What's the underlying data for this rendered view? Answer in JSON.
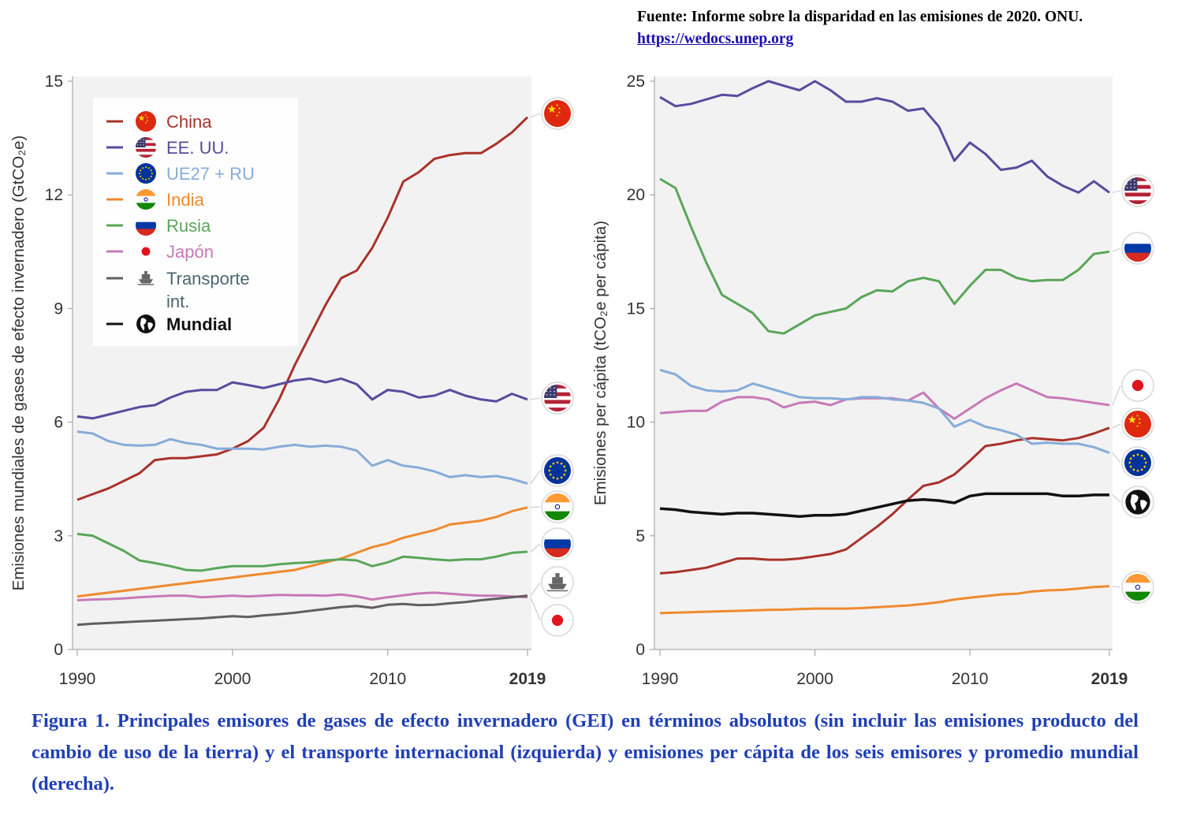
{
  "source": {
    "text": "Fuente: Informe sobre la disparidad en las emisiones de 2020. ONU.",
    "url": "https://wedocs.unep.org"
  },
  "caption": "Figura 1. Principales emisores de gases de efecto invernadero (GEI) en términos absolutos (sin incluir las emisiones producto del cambio de uso de la tierra)  y el transporte internacional (izquierda) y emisiones per cápita de los seis emisores y promedio mundial (derecha).",
  "colors": {
    "China": "#a9322a",
    "EE. UU.": "#5a4b9e",
    "UE27 + RU": "#86acd9",
    "India": "#ef8a2e",
    "Rusia": "#5aa65a",
    "Japón": "#c77ab8",
    "Transporte int.": "#5f5f5f",
    "Mundial": "#111111",
    "plot_bg": "#f2f2f2"
  },
  "legend": [
    {
      "name": "China",
      "label": "China",
      "label2": "",
      "icon": "china-flag-icon"
    },
    {
      "name": "EE. UU.",
      "label": "EE. UU.",
      "label2": "",
      "icon": "usa-flag-icon"
    },
    {
      "name": "UE27 + RU",
      "label": "UE27 + RU",
      "label2": "",
      "icon": "eu-flag-icon"
    },
    {
      "name": "India",
      "label": "India",
      "label2": "",
      "icon": "india-flag-icon"
    },
    {
      "name": "Rusia",
      "label": "Rusia",
      "label2": "",
      "icon": "russia-flag-icon"
    },
    {
      "name": "Japón",
      "label": "Japón",
      "label2": "",
      "icon": "japan-flag-icon"
    },
    {
      "name": "Transporte int.",
      "label": "Transporte",
      "label2": "int.",
      "icon": "ship-icon"
    },
    {
      "name": "Mundial",
      "label": "Mundial",
      "label2": "",
      "icon": "globe-icon"
    }
  ],
  "chart_data": [
    {
      "type": "line",
      "title": "",
      "xlabel": "",
      "ylabel": "Emisiones mundiales de gases de efecto invernadero (GtCO₂e)",
      "xlim": [
        1990,
        2019
      ],
      "ylim": [
        0,
        15
      ],
      "xticks": [
        "1990",
        "2000",
        "2010",
        "2019"
      ],
      "yticks": [
        "0",
        "3",
        "6",
        "9",
        "12",
        "15"
      ],
      "grid": false,
      "legend_position": "top-left",
      "x": [
        1990,
        1991,
        1992,
        1993,
        1994,
        1995,
        1996,
        1997,
        1998,
        1999,
        2000,
        2001,
        2002,
        2003,
        2004,
        2005,
        2006,
        2007,
        2008,
        2009,
        2010,
        2011,
        2012,
        2013,
        2014,
        2015,
        2016,
        2017,
        2018,
        2019
      ],
      "series": [
        {
          "name": "China",
          "end_icon": "china-flag-icon",
          "values": [
            3.95,
            4.1,
            4.25,
            4.45,
            4.65,
            5.0,
            5.05,
            5.05,
            5.1,
            5.15,
            5.3,
            5.5,
            5.85,
            6.6,
            7.5,
            8.3,
            9.1,
            9.8,
            10.0,
            10.6,
            11.4,
            12.35,
            12.6,
            12.95,
            13.05,
            13.1,
            13.1,
            13.35,
            13.65,
            14.05
          ]
        },
        {
          "name": "EE. UU.",
          "end_icon": "usa-flag-icon",
          "values": [
            6.15,
            6.1,
            6.2,
            6.3,
            6.4,
            6.45,
            6.65,
            6.8,
            6.85,
            6.85,
            7.05,
            6.98,
            6.9,
            7.0,
            7.1,
            7.15,
            7.05,
            7.15,
            7.0,
            6.6,
            6.85,
            6.8,
            6.65,
            6.7,
            6.85,
            6.7,
            6.6,
            6.55,
            6.75,
            6.6
          ]
        },
        {
          "name": "UE27 + RU",
          "end_icon": "eu-flag-icon",
          "values": [
            5.75,
            5.7,
            5.5,
            5.4,
            5.38,
            5.4,
            5.55,
            5.45,
            5.4,
            5.3,
            5.3,
            5.3,
            5.28,
            5.35,
            5.4,
            5.35,
            5.38,
            5.35,
            5.25,
            4.85,
            5.0,
            4.85,
            4.8,
            4.7,
            4.55,
            4.6,
            4.55,
            4.58,
            4.5,
            4.38
          ]
        },
        {
          "name": "India",
          "end_icon": "india-flag-icon",
          "values": [
            1.4,
            1.45,
            1.5,
            1.55,
            1.6,
            1.65,
            1.7,
            1.75,
            1.8,
            1.85,
            1.9,
            1.95,
            2.0,
            2.05,
            2.1,
            2.2,
            2.3,
            2.4,
            2.55,
            2.7,
            2.8,
            2.95,
            3.05,
            3.15,
            3.3,
            3.35,
            3.4,
            3.5,
            3.65,
            3.75
          ]
        },
        {
          "name": "Rusia",
          "end_icon": "russia-flag-icon",
          "values": [
            3.05,
            3.0,
            2.8,
            2.6,
            2.35,
            2.28,
            2.2,
            2.1,
            2.08,
            2.15,
            2.2,
            2.2,
            2.2,
            2.25,
            2.28,
            2.3,
            2.35,
            2.38,
            2.35,
            2.2,
            2.3,
            2.45,
            2.42,
            2.38,
            2.35,
            2.38,
            2.38,
            2.45,
            2.55,
            2.58
          ]
        },
        {
          "name": "Japón",
          "end_icon": "japan-flag-icon",
          "values": [
            1.3,
            1.32,
            1.33,
            1.35,
            1.38,
            1.4,
            1.42,
            1.42,
            1.38,
            1.4,
            1.42,
            1.4,
            1.42,
            1.44,
            1.43,
            1.43,
            1.42,
            1.45,
            1.4,
            1.32,
            1.38,
            1.43,
            1.48,
            1.5,
            1.47,
            1.44,
            1.42,
            1.42,
            1.4,
            1.38
          ]
        },
        {
          "name": "Transporte int.",
          "end_icon": "ship-icon",
          "values": [
            0.65,
            0.68,
            0.7,
            0.72,
            0.74,
            0.76,
            0.78,
            0.8,
            0.82,
            0.85,
            0.88,
            0.86,
            0.9,
            0.93,
            0.97,
            1.02,
            1.07,
            1.12,
            1.15,
            1.1,
            1.18,
            1.2,
            1.17,
            1.18,
            1.22,
            1.25,
            1.3,
            1.34,
            1.38,
            1.42
          ]
        }
      ]
    },
    {
      "type": "line",
      "title": "",
      "xlabel": "",
      "ylabel": "Emisiones per cápita (tCO₂e per cápita)",
      "xlim": [
        1990,
        2019
      ],
      "ylim": [
        0,
        25
      ],
      "xticks": [
        "1990",
        "2000",
        "2010",
        "2019"
      ],
      "yticks": [
        "0",
        "5",
        "10",
        "15",
        "20",
        "25"
      ],
      "grid": false,
      "x": [
        1990,
        1991,
        1992,
        1993,
        1994,
        1995,
        1996,
        1997,
        1998,
        1999,
        2000,
        2001,
        2002,
        2003,
        2004,
        2005,
        2006,
        2007,
        2008,
        2009,
        2010,
        2011,
        2012,
        2013,
        2014,
        2015,
        2016,
        2017,
        2018,
        2019
      ],
      "series": [
        {
          "name": "EE. UU.",
          "end_icon": "usa-flag-icon",
          "values": [
            24.3,
            23.9,
            24.0,
            24.2,
            24.4,
            24.35,
            24.7,
            25.0,
            24.8,
            24.6,
            25.0,
            24.6,
            24.1,
            24.1,
            24.25,
            24.1,
            23.7,
            23.8,
            23.0,
            21.5,
            22.3,
            21.8,
            21.1,
            21.2,
            21.5,
            20.8,
            20.4,
            20.1,
            20.6,
            20.1
          ]
        },
        {
          "name": "Rusia",
          "end_icon": "russia-flag-icon",
          "values": [
            20.7,
            20.3,
            18.6,
            17.0,
            15.6,
            15.2,
            14.8,
            14.0,
            13.9,
            14.3,
            14.7,
            14.85,
            15.0,
            15.5,
            15.8,
            15.75,
            16.2,
            16.35,
            16.2,
            15.2,
            16.0,
            16.7,
            16.7,
            16.35,
            16.2,
            16.25,
            16.25,
            16.7,
            17.4,
            17.5
          ]
        },
        {
          "name": "Japón",
          "end_icon": "japan-flag-icon",
          "values": [
            10.4,
            10.45,
            10.5,
            10.5,
            10.9,
            11.1,
            11.1,
            11.0,
            10.65,
            10.85,
            10.9,
            10.75,
            11.0,
            11.05,
            11.05,
            11.05,
            10.95,
            11.3,
            10.6,
            10.15,
            10.6,
            11.05,
            11.4,
            11.7,
            11.4,
            11.1,
            11.05,
            10.95,
            10.85,
            10.75
          ]
        },
        {
          "name": "China",
          "end_icon": "china-flag-icon",
          "values": [
            3.35,
            3.4,
            3.5,
            3.6,
            3.8,
            4.0,
            4.0,
            3.95,
            3.95,
            4.0,
            4.1,
            4.2,
            4.4,
            4.9,
            5.4,
            5.95,
            6.6,
            7.2,
            7.35,
            7.7,
            8.3,
            8.95,
            9.05,
            9.2,
            9.3,
            9.25,
            9.2,
            9.3,
            9.5,
            9.75
          ]
        },
        {
          "name": "UE27 + RU",
          "end_icon": "eu-flag-icon",
          "values": [
            12.3,
            12.1,
            11.6,
            11.4,
            11.35,
            11.4,
            11.7,
            11.5,
            11.3,
            11.1,
            11.05,
            11.05,
            11.0,
            11.1,
            11.1,
            11.0,
            10.95,
            10.85,
            10.6,
            9.8,
            10.1,
            9.8,
            9.65,
            9.45,
            9.05,
            9.1,
            9.05,
            9.05,
            8.9,
            8.65
          ]
        },
        {
          "name": "Mundial",
          "end_icon": "globe-icon",
          "values": [
            6.2,
            6.15,
            6.05,
            6.0,
            5.95,
            6.0,
            6.0,
            5.95,
            5.9,
            5.85,
            5.9,
            5.9,
            5.95,
            6.1,
            6.25,
            6.4,
            6.55,
            6.6,
            6.55,
            6.45,
            6.75,
            6.85,
            6.85,
            6.85,
            6.85,
            6.85,
            6.75,
            6.75,
            6.8,
            6.8
          ]
        },
        {
          "name": "India",
          "end_icon": "india-flag-icon",
          "values": [
            1.6,
            1.62,
            1.64,
            1.66,
            1.68,
            1.7,
            1.72,
            1.74,
            1.75,
            1.78,
            1.8,
            1.8,
            1.8,
            1.82,
            1.86,
            1.9,
            1.94,
            2.0,
            2.08,
            2.2,
            2.28,
            2.35,
            2.42,
            2.45,
            2.55,
            2.6,
            2.62,
            2.68,
            2.75,
            2.78
          ]
        }
      ]
    }
  ]
}
